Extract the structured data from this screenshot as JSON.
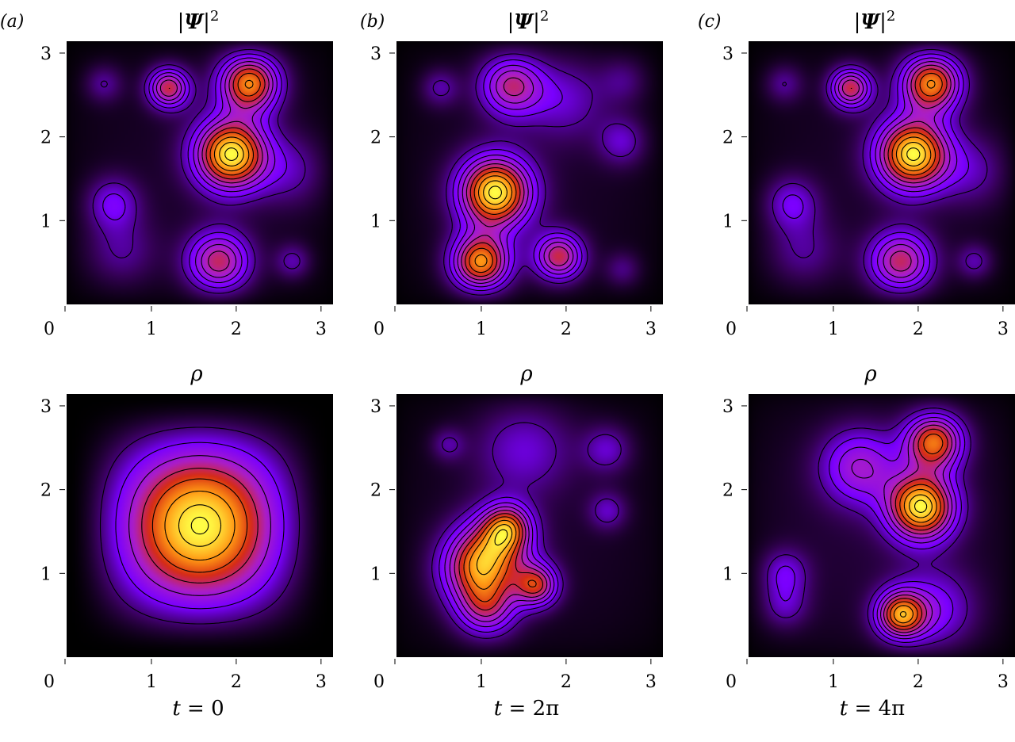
{
  "figure": {
    "columns": [
      {
        "panel_label": "(a)",
        "time_label_italic": "t",
        "time_label_rest": " = 0"
      },
      {
        "panel_label": "(b)",
        "time_label_italic": "t",
        "time_label_rest": " = 2π"
      },
      {
        "panel_label": "(c)",
        "time_label_italic": "t",
        "time_label_rest": " = 4π"
      }
    ],
    "row_titles": {
      "top": {
        "prefix": "|",
        "symbol": "Ψ",
        "suffix": "|",
        "superscript": "2"
      },
      "bottom": {
        "symbol": "ρ"
      }
    }
  },
  "chart_data": [
    {
      "type": "heatmap",
      "panel": "(a)",
      "row": "top",
      "title": "|Ψ|²",
      "xlim": [
        0,
        3.1416
      ],
      "ylim": [
        0,
        3.1416
      ],
      "xticks": [
        "0",
        "1",
        "2",
        "3"
      ],
      "yticks": [
        "1",
        "2",
        "3"
      ],
      "colormap": [
        "#000000",
        "#7a00ff",
        "#d62c00",
        "#ffff40"
      ],
      "peaks": [
        {
          "x": 2.17,
          "y": 2.68,
          "a": 1.0,
          "s": 0.25
        },
        {
          "x": 1.95,
          "y": 1.8,
          "a": 0.9,
          "s": 0.3
        },
        {
          "x": 1.2,
          "y": 2.6,
          "a": 0.7,
          "s": 0.17
        },
        {
          "x": 1.8,
          "y": 0.47,
          "a": 0.68,
          "s": 0.26
        },
        {
          "x": 0.52,
          "y": 1.2,
          "a": 0.3,
          "s": 0.22
        },
        {
          "x": 0.42,
          "y": 2.65,
          "a": 0.25,
          "s": 0.16
        },
        {
          "x": 2.68,
          "y": 0.5,
          "a": 0.28,
          "s": 0.15
        },
        {
          "x": 2.7,
          "y": 1.6,
          "a": 0.2,
          "s": 0.3
        },
        {
          "x": 0.6,
          "y": 0.6,
          "a": 0.2,
          "s": 0.3
        }
      ]
    },
    {
      "type": "heatmap",
      "panel": "(b)",
      "row": "top",
      "title": "|Ψ|²",
      "xlim": [
        0,
        3.1416
      ],
      "ylim": [
        0,
        3.1416
      ],
      "xticks": [
        "0",
        "1",
        "2",
        "3"
      ],
      "yticks": [
        "1",
        "2",
        "3"
      ],
      "colormap": [
        "#000000",
        "#7a00ff",
        "#d62c00",
        "#ffff40"
      ],
      "peaks": [
        {
          "x": 1.15,
          "y": 1.33,
          "a": 0.9,
          "s": 0.3
        },
        {
          "x": 0.98,
          "y": 0.47,
          "a": 1.0,
          "s": 0.24
        },
        {
          "x": 1.92,
          "y": 0.55,
          "a": 0.68,
          "s": 0.2
        },
        {
          "x": 1.35,
          "y": 2.65,
          "a": 0.6,
          "s": 0.26
        },
        {
          "x": 0.5,
          "y": 2.6,
          "a": 0.25,
          "s": 0.16
        },
        {
          "x": 2.68,
          "y": 1.95,
          "a": 0.25,
          "s": 0.2
        },
        {
          "x": 2.68,
          "y": 0.4,
          "a": 0.22,
          "s": 0.15
        },
        {
          "x": 2.7,
          "y": 2.7,
          "a": 0.2,
          "s": 0.2
        },
        {
          "x": 2.0,
          "y": 2.5,
          "a": 0.22,
          "s": 0.35
        }
      ]
    },
    {
      "type": "heatmap",
      "panel": "(c)",
      "row": "top",
      "title": "|Ψ|²",
      "xlim": [
        0,
        3.1416
      ],
      "ylim": [
        0,
        3.1416
      ],
      "xticks": [
        "0",
        "1",
        "2",
        "3"
      ],
      "yticks": [
        "1",
        "2",
        "3"
      ],
      "colormap": [
        "#000000",
        "#7a00ff",
        "#d62c00",
        "#ffff40"
      ],
      "peaks": [
        {
          "x": 2.17,
          "y": 2.68,
          "a": 1.0,
          "s": 0.25
        },
        {
          "x": 1.95,
          "y": 1.8,
          "a": 0.9,
          "s": 0.3
        },
        {
          "x": 1.2,
          "y": 2.6,
          "a": 0.7,
          "s": 0.17
        },
        {
          "x": 1.8,
          "y": 0.47,
          "a": 0.68,
          "s": 0.26
        },
        {
          "x": 0.48,
          "y": 1.2,
          "a": 0.3,
          "s": 0.22
        },
        {
          "x": 0.4,
          "y": 2.65,
          "a": 0.25,
          "s": 0.16
        },
        {
          "x": 2.68,
          "y": 0.5,
          "a": 0.28,
          "s": 0.15
        },
        {
          "x": 2.7,
          "y": 1.6,
          "a": 0.2,
          "s": 0.3
        },
        {
          "x": 0.6,
          "y": 0.6,
          "a": 0.2,
          "s": 0.3
        }
      ]
    },
    {
      "type": "heatmap",
      "panel": "(a)",
      "row": "bottom",
      "title": "ρ",
      "xlim": [
        0,
        3.1416
      ],
      "ylim": [
        0,
        3.1416
      ],
      "xticks": [
        "0",
        "1",
        "2",
        "3"
      ],
      "yticks": [
        "1",
        "2",
        "3"
      ],
      "colormap": [
        "#000000",
        "#7a00ff",
        "#d62c00",
        "#ffff40"
      ],
      "field": "sin(x)^2·sin(y)^2 (single centred maximum at (π/2, π/2))"
    },
    {
      "type": "heatmap",
      "panel": "(b)",
      "row": "bottom",
      "title": "ρ",
      "xlim": [
        0,
        3.1416
      ],
      "ylim": [
        0,
        3.1416
      ],
      "xticks": [
        "0",
        "1",
        "2",
        "3"
      ],
      "yticks": [
        "1",
        "2",
        "3"
      ],
      "colormap": [
        "#000000",
        "#7a00ff",
        "#d62c00",
        "#ffff40"
      ],
      "peaks": [
        {
          "x": 1.1,
          "y": 1.2,
          "a": 0.55,
          "s": 0.32
        },
        {
          "x": 1.65,
          "y": 0.85,
          "a": 0.55,
          "s": 0.18
        },
        {
          "x": 1.3,
          "y": 1.55,
          "a": 0.5,
          "s": 0.2
        },
        {
          "x": 1.05,
          "y": 0.55,
          "a": 0.5,
          "s": 0.25
        },
        {
          "x": 0.85,
          "y": 1.0,
          "a": 0.35,
          "s": 0.3
        },
        {
          "x": 0.6,
          "y": 2.55,
          "a": 0.2,
          "s": 0.14
        },
        {
          "x": 1.5,
          "y": 2.55,
          "a": 0.22,
          "s": 0.4
        },
        {
          "x": 2.5,
          "y": 2.5,
          "a": 0.25,
          "s": 0.2
        },
        {
          "x": 2.5,
          "y": 1.75,
          "a": 0.2,
          "s": 0.16
        }
      ]
    },
    {
      "type": "heatmap",
      "panel": "(c)",
      "row": "bottom",
      "title": "ρ",
      "xlim": [
        0,
        3.1416
      ],
      "ylim": [
        0,
        3.1416
      ],
      "xticks": [
        "0",
        "1",
        "2",
        "3"
      ],
      "yticks": [
        "1",
        "2",
        "3"
      ],
      "colormap": [
        "#000000",
        "#7a00ff",
        "#d62c00",
        "#ffff40"
      ],
      "peaks": [
        {
          "x": 2.2,
          "y": 2.6,
          "a": 0.65,
          "s": 0.24
        },
        {
          "x": 2.05,
          "y": 1.8,
          "a": 0.65,
          "s": 0.28
        },
        {
          "x": 1.8,
          "y": 0.48,
          "a": 0.62,
          "s": 0.2
        },
        {
          "x": 1.3,
          "y": 2.3,
          "a": 0.3,
          "s": 0.32
        },
        {
          "x": 0.4,
          "y": 1.0,
          "a": 0.22,
          "s": 0.2
        },
        {
          "x": 0.4,
          "y": 0.6,
          "a": 0.2,
          "s": 0.2
        },
        {
          "x": 2.2,
          "y": 0.5,
          "a": 0.25,
          "s": 0.35
        }
      ]
    }
  ]
}
